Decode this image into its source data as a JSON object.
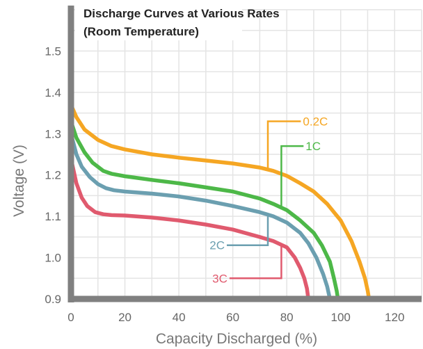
{
  "chart_data": {
    "type": "line",
    "title_line1": "Discharge Curves at Various Rates",
    "title_line2": "(Room Temperature)",
    "xlabel": "Capacity Discharged (%)",
    "ylabel": "Voltage (V)",
    "xlim": [
      0,
      130
    ],
    "ylim": [
      0.9,
      1.6
    ],
    "xticks": [
      "0",
      "20",
      "40",
      "60",
      "80",
      "100",
      "120"
    ],
    "yticks": [
      "0.9",
      "1.0",
      "1.1",
      "1.2",
      "1.3",
      "1.4",
      "1.5"
    ],
    "grid": true,
    "series": [
      {
        "name": "0.2C",
        "color": "#F5A623",
        "x": [
          0,
          2,
          5,
          10,
          15,
          20,
          30,
          40,
          50,
          60,
          70,
          75,
          80,
          85,
          90,
          95,
          100,
          104,
          107,
          109,
          110,
          110.5
        ],
        "y": [
          1.37,
          1.34,
          1.31,
          1.285,
          1.27,
          1.262,
          1.25,
          1.242,
          1.235,
          1.228,
          1.218,
          1.21,
          1.198,
          1.18,
          1.16,
          1.13,
          1.09,
          1.04,
          0.99,
          0.95,
          0.92,
          0.9
        ]
      },
      {
        "name": "1C",
        "color": "#4DB848",
        "x": [
          0,
          2,
          5,
          8,
          12,
          15,
          20,
          30,
          40,
          50,
          60,
          70,
          75,
          80,
          85,
          90,
          93,
          96,
          97.5,
          98.5,
          99
        ],
        "y": [
          1.33,
          1.29,
          1.255,
          1.23,
          1.21,
          1.203,
          1.197,
          1.188,
          1.18,
          1.17,
          1.16,
          1.143,
          1.13,
          1.115,
          1.09,
          1.06,
          1.03,
          0.99,
          0.95,
          0.92,
          0.9
        ]
      },
      {
        "name": "2C",
        "color": "#6B9FB0",
        "x": [
          0,
          2,
          4,
          7,
          10,
          13,
          16,
          20,
          30,
          40,
          50,
          60,
          70,
          75,
          80,
          85,
          88,
          91,
          93.5,
          95,
          96
        ],
        "y": [
          1.3,
          1.25,
          1.22,
          1.195,
          1.178,
          1.168,
          1.163,
          1.16,
          1.155,
          1.148,
          1.138,
          1.125,
          1.11,
          1.1,
          1.085,
          1.06,
          1.035,
          1.0,
          0.96,
          0.93,
          0.9
        ]
      },
      {
        "name": "3C",
        "color": "#E05A6E",
        "x": [
          0,
          2,
          4,
          6,
          9,
          12,
          15,
          20,
          30,
          40,
          50,
          60,
          70,
          75,
          80,
          83,
          85,
          86.5,
          87.5,
          88
        ],
        "y": [
          1.24,
          1.18,
          1.145,
          1.125,
          1.11,
          1.105,
          1.103,
          1.102,
          1.097,
          1.09,
          1.08,
          1.068,
          1.05,
          1.04,
          1.025,
          1.0,
          0.975,
          0.95,
          0.925,
          0.9
        ]
      }
    ],
    "annotations": [
      {
        "series": "0.2C",
        "label": "0.2C",
        "point": [
          73,
          1.215
        ],
        "elbow": [
          73,
          1.33
        ],
        "text_at": [
          86,
          1.33
        ],
        "side": "right"
      },
      {
        "series": "1C",
        "label": "1C",
        "point": [
          78,
          1.12
        ],
        "elbow": [
          78,
          1.27
        ],
        "text_at": [
          87,
          1.27
        ],
        "side": "right"
      },
      {
        "series": "2C",
        "label": "2C",
        "point": [
          73,
          1.103
        ],
        "elbow": [
          73,
          1.03
        ],
        "text_at": [
          57,
          1.03
        ],
        "side": "left"
      },
      {
        "series": "3C",
        "label": "3C",
        "point": [
          78,
          1.03
        ],
        "elbow": [
          78,
          0.95
        ],
        "text_at": [
          58,
          0.95
        ],
        "side": "left"
      }
    ]
  }
}
